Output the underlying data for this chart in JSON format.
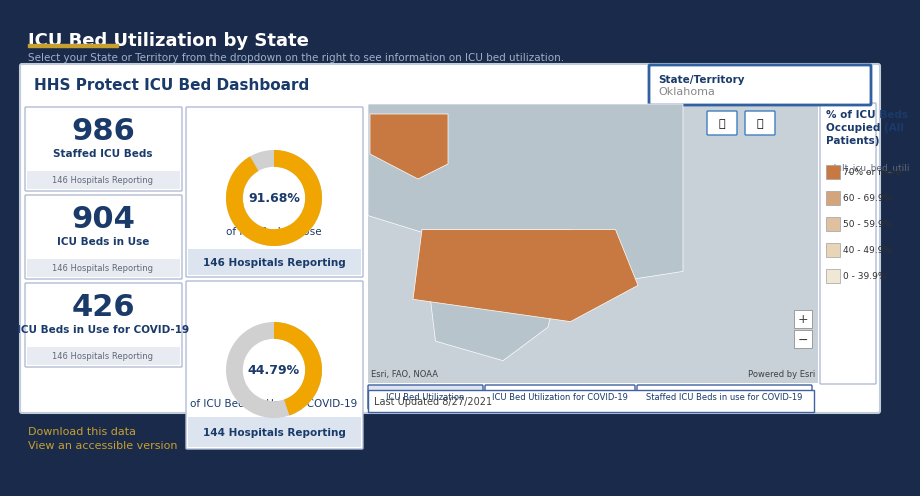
{
  "title": "ICU Bed Utilization by State",
  "subtitle": "Select your State or Territory from the dropdown on the right to see information on ICU bed utilization.",
  "bg_color": "#1a2a4a",
  "panel_bg": "#ffffff",
  "panel_border": "#b0bcd4",
  "dashboard_title": "HHS Protect ICU Bed Dashboard",
  "state_label": "State/Territory",
  "state_value": "Oklahoma",
  "stats": [
    {
      "value": "986",
      "label": "Staffed ICU Beds",
      "sub": "146 Hospitals Reporting"
    },
    {
      "value": "904",
      "label": "ICU Beds in Use",
      "sub": "146 Hospitals Reporting"
    },
    {
      "value": "426",
      "label": "ICU Beds in Use for COVID-19",
      "sub": "146 Hospitals Reporting"
    }
  ],
  "donut1_pct": 91.68,
  "donut1_label": "of ICU Beds in Use",
  "donut1_sub": "146 Hospitals Reporting",
  "donut2_pct": 44.79,
  "donut2_label": "of ICU Beds in Use for COVID-19",
  "donut2_sub": "144 Hospitals Reporting",
  "donut_color": "#f0a500",
  "donut_bg": "#d0d0d0",
  "legend_title": "% of ICU Beds\nOccupied (All\nPatients)",
  "legend_sub": "adult_icu_bed_utili",
  "legend_items": [
    {
      "label": "70% or more",
      "color": "#c87941"
    },
    {
      "label": "60 - 69.9%",
      "color": "#d4a57a"
    },
    {
      "label": "50 - 59.9%",
      "color": "#dfc0a0"
    },
    {
      "label": "40 - 49.9%",
      "color": "#e8d5b8"
    },
    {
      "label": "0 - 39.9%",
      "color": "#f0e8d5"
    }
  ],
  "map_bg": "#c8d0d8",
  "map_highlight": "#c87941",
  "tabs": [
    "ICU Bed Utilization",
    "ICU Bed Utilization for COVID-19",
    "Staffed ICU Beds in use for COVID-19"
  ],
  "footer_map": "Esri, FAO, NOAA",
  "footer_right": "Powered by Esri",
  "last_updated": "Last Updated 8/27/2021",
  "download_text": "Download this data",
  "accessible_text": "View an accessible version",
  "link_color": "#c8a030",
  "navy": "#1a2a4a",
  "blue_text": "#1a3a6a",
  "stat_value_color": "#1a3a6a",
  "stat_label_color": "#1a3a6a",
  "sub_bg": "#e8ecf2"
}
